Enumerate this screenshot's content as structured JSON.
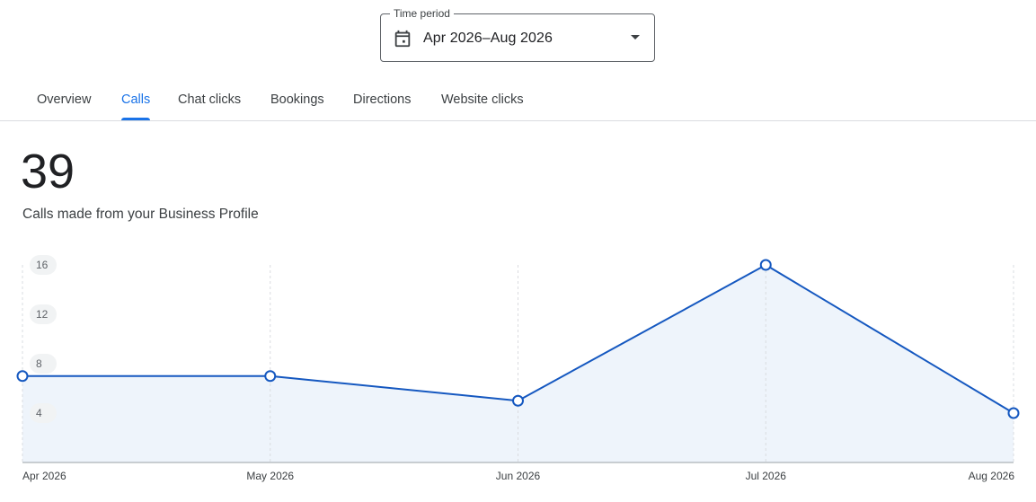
{
  "time_period": {
    "label": "Time period",
    "value": "Apr 2026–Aug 2026",
    "icon": "calendar-icon"
  },
  "tabs": [
    {
      "label": "Overview",
      "active": false
    },
    {
      "label": "Calls",
      "active": true
    },
    {
      "label": "Chat clicks",
      "active": false
    },
    {
      "label": "Bookings",
      "active": false
    },
    {
      "label": "Directions",
      "active": false
    },
    {
      "label": "Website clicks",
      "active": false
    }
  ],
  "metric": {
    "value": "39",
    "caption": "Calls made from your Business Profile"
  },
  "colors": {
    "accent": "#1a73e8",
    "line": "#1558c0",
    "area_fill": "#eef4fb"
  },
  "chart_data": {
    "type": "line",
    "categories": [
      "Apr 2026",
      "May 2026",
      "Jun 2026",
      "Jul 2026",
      "Aug 2026"
    ],
    "series": [
      {
        "values": [
          7,
          7,
          5,
          16,
          4
        ]
      }
    ],
    "ylim": [
      0,
      16
    ],
    "y_ticks": [
      4,
      8,
      12,
      16
    ],
    "area_fill": true,
    "grid": "vertical dashed"
  }
}
